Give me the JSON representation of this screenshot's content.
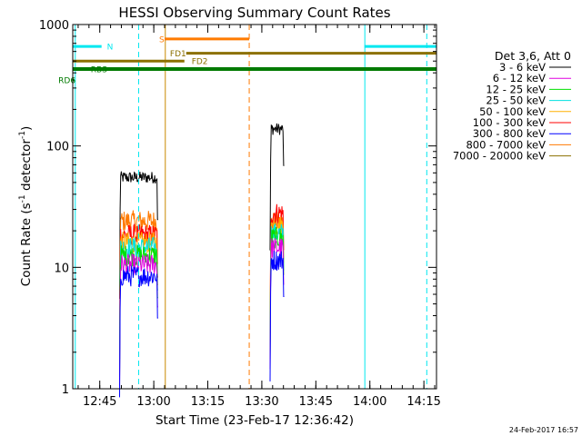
{
  "chart_data": {
    "type": "line",
    "title": "HESSI Observing Summary Count Rates",
    "xlabel": "Start Time (23-Feb-17 12:36:42)",
    "ylabel": "Count Rate (s⁻¹ detector⁻¹)",
    "ylabel_parts": {
      "prefix": "Count Rate (s",
      "sup1": "-1",
      "mid": " detector",
      "sup2": "-1",
      "suffix": ")"
    },
    "y_scale": "log",
    "ylim": [
      1,
      1000
    ],
    "y_ticks": [
      {
        "v": 1,
        "label": "1"
      },
      {
        "v": 10,
        "label": "10"
      },
      {
        "v": 100,
        "label": "100"
      },
      {
        "v": 1000,
        "label": "1000"
      }
    ],
    "xlim_min": [
      757.5,
      858.5
    ],
    "x_ticks": [
      {
        "m": 765,
        "label": "12:45"
      },
      {
        "m": 780,
        "label": "13:00"
      },
      {
        "m": 795,
        "label": "13:15"
      },
      {
        "m": 810,
        "label": "13:30"
      },
      {
        "m": 825,
        "label": "13:45"
      },
      {
        "m": 840,
        "label": "14:00"
      },
      {
        "m": 855,
        "label": "14:15"
      }
    ],
    "x_minor_step": 3,
    "legend_placement": "right",
    "legend_title": "Det 3,6, Att 0",
    "series": [
      {
        "name": "3 - 6 keV",
        "color": "#000000",
        "seg1": 55,
        "seg2": 138
      },
      {
        "name": "6 - 12 keV",
        "color": "#e000e0",
        "seg1": 10.5,
        "seg2": 14.5
      },
      {
        "name": "12 - 25 keV",
        "color": "#00e000",
        "seg1": 12.5,
        "seg2": 17.5
      },
      {
        "name": "25 - 50 keV",
        "color": "#00e0e0",
        "seg1": 14.5,
        "seg2": 19
      },
      {
        "name": "50 - 100 keV",
        "color": "#ffb000",
        "seg1": 16,
        "seg2": 22
      },
      {
        "name": "100 - 300 keV",
        "color": "#ff0000",
        "seg1": 18.5,
        "seg2": 28
      },
      {
        "name": "300 - 800 keV",
        "color": "#0000ff",
        "seg1": 8.5,
        "seg2": 11.5
      },
      {
        "name": "800 - 7000 keV",
        "color": "#ff7a00",
        "seg1": 24,
        "seg2": 23.5
      },
      {
        "name": "7000 - 20000 keV",
        "color": "#8c7000",
        "seg1": null,
        "seg2": null
      }
    ],
    "data_segments_min": [
      [
        770.5,
        781.2
      ],
      [
        812.3,
        816.2
      ]
    ],
    "flags": [
      {
        "label": "N",
        "color": "#00e8f0",
        "y": 660,
        "ranges": [
          [
            757.5,
            765.5
          ],
          [
            838.5,
            858.5
          ]
        ],
        "label_at": 767,
        "width": 3
      },
      {
        "label": "S",
        "color": "#ff7a00",
        "y": 760,
        "ranges": [
          [
            783,
            806.5
          ]
        ],
        "label_at": 781.5,
        "width": 3
      },
      {
        "label": "FD1",
        "color": "#8c7000",
        "y": 580,
        "ranges": [
          [
            789,
            858.5
          ]
        ],
        "label_at": 784.5,
        "width": 3
      },
      {
        "label": "FD2",
        "color": "#8c7000",
        "y": 500,
        "ranges": [
          [
            757.5,
            788.5
          ]
        ],
        "label_at": 790.5,
        "width": 3
      },
      {
        "label": "RBS",
        "color": "#007a00",
        "y": 430,
        "ranges": [
          [
            757.5,
            858.5
          ]
        ],
        "label_at": 762.5,
        "width": 4
      },
      {
        "label": "RD6",
        "color": "#007a00",
        "y": 350,
        "ranges": [
          [
            757.6,
            757.9
          ]
        ],
        "label_at": 753.5,
        "width": 3
      }
    ],
    "vlines": [
      {
        "x": 758.2,
        "color": "#00e8f0",
        "dash": false
      },
      {
        "x": 775.8,
        "color": "#00e8f0",
        "dash": true
      },
      {
        "x": 783.2,
        "color": "#c88a00",
        "dash": false
      },
      {
        "x": 806.5,
        "color": "#ff7a00",
        "dash": true
      },
      {
        "x": 838.6,
        "color": "#00e8f0",
        "dash": false
      },
      {
        "x": 855.8,
        "color": "#00e8f0",
        "dash": true
      }
    ],
    "footer": "24-Feb-2017 16:57"
  }
}
